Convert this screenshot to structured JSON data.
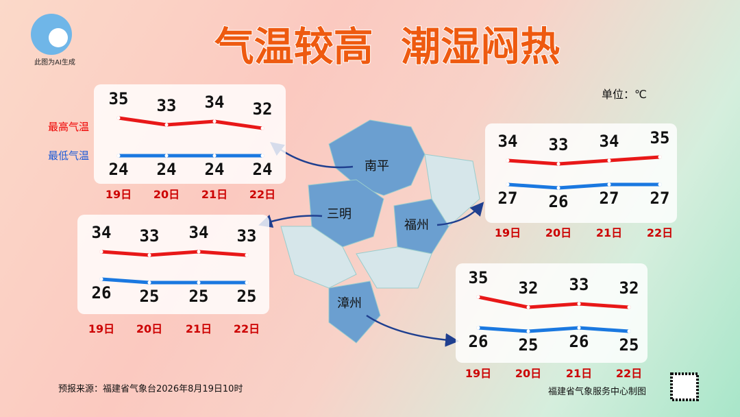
{
  "title": "气温较高  潮湿闷热",
  "ai_note": "此图为AI生成",
  "unit": "单位：℃",
  "legend": {
    "max": "最高气温",
    "min": "最低气温"
  },
  "source": "预报来源：福建省气象台2026年8月19日10时",
  "credit": "福建省气象服务中心制图",
  "dates": [
    "19日",
    "20日",
    "21日",
    "22日"
  ],
  "cities": [
    {
      "name": "南平",
      "max": [
        35,
        33,
        34,
        32
      ],
      "min": [
        24,
        24,
        24,
        24
      ]
    },
    {
      "name": "三明",
      "max": [
        34,
        33,
        34,
        33
      ],
      "min": [
        26,
        25,
        25,
        25
      ]
    },
    {
      "name": "福州",
      "max": [
        34,
        33,
        34,
        35
      ],
      "min": [
        27,
        26,
        27,
        27
      ]
    },
    {
      "name": "漳州",
      "max": [
        35,
        32,
        33,
        32
      ],
      "min": [
        26,
        25,
        26,
        25
      ]
    }
  ]
}
